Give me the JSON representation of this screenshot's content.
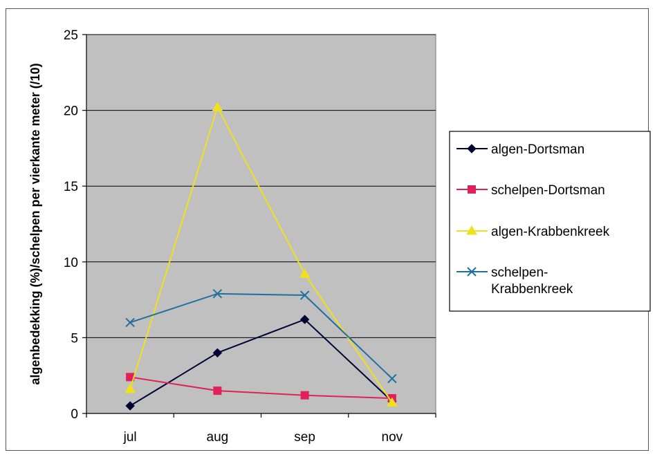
{
  "chart_data": {
    "type": "line",
    "title": "",
    "xlabel": "",
    "ylabel": "algenbedekking (%)/schelpen per vierkante meter (/10)",
    "categories": [
      "jul",
      "aug",
      "sep",
      "nov"
    ],
    "ylim": [
      0,
      25
    ],
    "yticks": [
      0,
      5,
      10,
      15,
      20,
      25
    ],
    "grid": true,
    "legend_position": "right",
    "plot_background": "#c0c0c0",
    "series": [
      {
        "name": "algen-Dortsman",
        "legend_lines": [
          "algen-Dortsman"
        ],
        "color": "#000033",
        "marker": "diamond",
        "values": [
          0.5,
          4.0,
          6.2,
          0.8
        ]
      },
      {
        "name": "schelpen-Dortsman",
        "legend_lines": [
          "schelpen-Dortsman"
        ],
        "color": "#e0205a",
        "marker": "square",
        "values": [
          2.4,
          1.5,
          1.2,
          1.0
        ]
      },
      {
        "name": "algen-Krabbenkreek",
        "legend_lines": [
          "algen-Krabbenkreek"
        ],
        "color": "#f0e020",
        "marker": "triangle",
        "values": [
          1.6,
          20.2,
          9.2,
          0.7
        ]
      },
      {
        "name": "schelpen-Krabbenkreek",
        "legend_lines": [
          "schelpen-",
          "Krabbenkreek"
        ],
        "color": "#1f6f9f",
        "marker": "x",
        "values": [
          6.0,
          7.9,
          7.8,
          2.3
        ]
      }
    ]
  }
}
